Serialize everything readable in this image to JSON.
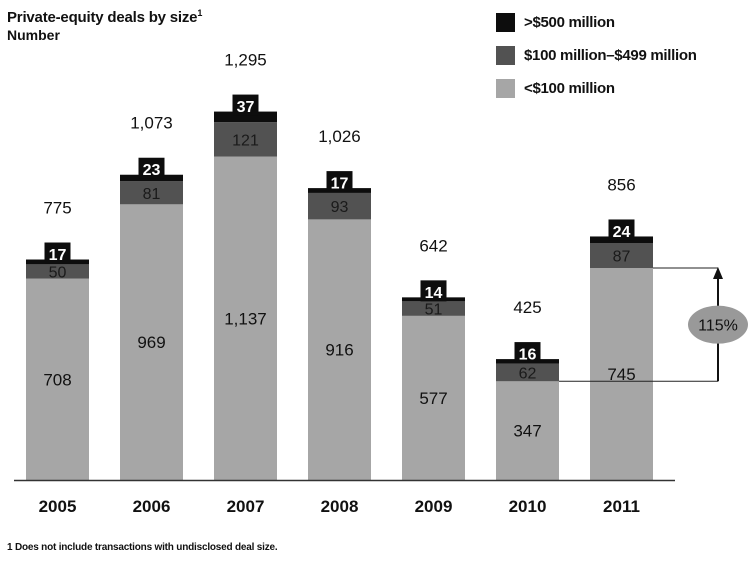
{
  "title": "Private-equity deals by size",
  "title_footnote_mark": "1",
  "subtitle": "Number",
  "footnote": "1 Does not include transactions with undisclosed deal size.",
  "colors": {
    "gt500": "#0d0d0d",
    "mid": "#525252",
    "lt100": "#a6a6a6",
    "badge": "#999999",
    "axis": "#333333"
  },
  "chart_data": {
    "type": "bar",
    "stacked": true,
    "categories": [
      "2005",
      "2006",
      "2007",
      "2008",
      "2009",
      "2010",
      "2011"
    ],
    "series": [
      {
        "name": "<$100 million",
        "color_key": "lt100",
        "values": [
          708,
          969,
          1137,
          916,
          577,
          347,
          745
        ]
      },
      {
        "name": "$100 million–$499 million",
        "color_key": "mid",
        "values": [
          50,
          81,
          121,
          93,
          51,
          62,
          87
        ]
      },
      {
        "name": ">$500 million",
        "color_key": "gt500",
        "values": [
          17,
          23,
          37,
          17,
          14,
          16,
          24
        ]
      }
    ],
    "totals": [
      "775",
      "1,073",
      "1,295",
      "1,026",
      "642",
      "425",
      "856"
    ],
    "value_labels": [
      [
        "708",
        "969",
        "1,137",
        "916",
        "577",
        "347",
        "745"
      ],
      [
        "50",
        "81",
        "121",
        "93",
        "51",
        "62",
        "87"
      ],
      [
        "17",
        "23",
        "37",
        "17",
        "14",
        "16",
        "24"
      ]
    ],
    "legend_order": [
      ">$500 million",
      "$100 million–$499 million",
      "<$100 million"
    ],
    "legend_position": "top-right",
    "annotation": {
      "text": "115%",
      "from_category": "2010",
      "to_category": "2011"
    },
    "ylim": [
      0,
      1400
    ],
    "grid": false
  }
}
